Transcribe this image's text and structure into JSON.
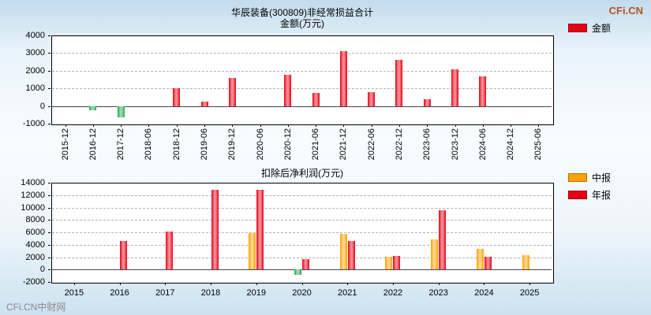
{
  "watermarks": {
    "top_right": "CFi.CN",
    "bottom_left": "CFi.CN中财网"
  },
  "chart_data": [
    {
      "type": "bar",
      "title": "华辰装备(300809)非经常损益合计",
      "subtitle": "金额(万元)",
      "ylim": [
        -1000,
        4000
      ],
      "ytick_step": 1000,
      "grid": "dashed-horizontal",
      "legend_position": "top-right-outside",
      "xlabel_rotation": 90,
      "negative_color": "#22a94c",
      "legend": [
        {
          "label": "金额",
          "color": "#e60014"
        }
      ],
      "categories": [
        "2015-12",
        "2016-12",
        "2017-12",
        "2018-06",
        "2018-12",
        "2019-06",
        "2019-12",
        "2020-06",
        "2020-12",
        "2021-06",
        "2021-12",
        "2022-06",
        "2022-12",
        "2023-06",
        "2023-12",
        "2024-06",
        "2024-12",
        "2025-06"
      ],
      "series": [
        {
          "name": "金额",
          "color": "#e60014",
          "values": [
            null,
            -250,
            -650,
            null,
            1000,
            270,
            1600,
            null,
            1750,
            750,
            3100,
            800,
            2600,
            400,
            2100,
            1700,
            null,
            null
          ]
        }
      ]
    },
    {
      "type": "bar",
      "title": "扣除后净利润(万元)",
      "subtitle": "",
      "ylim": [
        -2000,
        14000
      ],
      "ytick_step": 2000,
      "grid": "dashed-horizontal",
      "legend_position": "top-right-outside",
      "xlabel_rotation": 0,
      "negative_color": "#22a94c",
      "legend": [
        {
          "label": "中报",
          "color": "#ffa200"
        },
        {
          "label": "年报",
          "color": "#e60014"
        }
      ],
      "categories": [
        "2015",
        "2016",
        "2017",
        "2018",
        "2019",
        "2020",
        "2021",
        "2022",
        "2023",
        "2024",
        "2025"
      ],
      "series": [
        {
          "name": "中报",
          "color": "#ffa200",
          "values": [
            null,
            null,
            null,
            null,
            5900,
            -900,
            5800,
            2100,
            4900,
            3300,
            2300
          ]
        },
        {
          "name": "年报",
          "color": "#e60014",
          "values": [
            null,
            4600,
            6100,
            12900,
            12900,
            1700,
            4600,
            2200,
            9600,
            2100,
            null
          ]
        }
      ]
    }
  ]
}
